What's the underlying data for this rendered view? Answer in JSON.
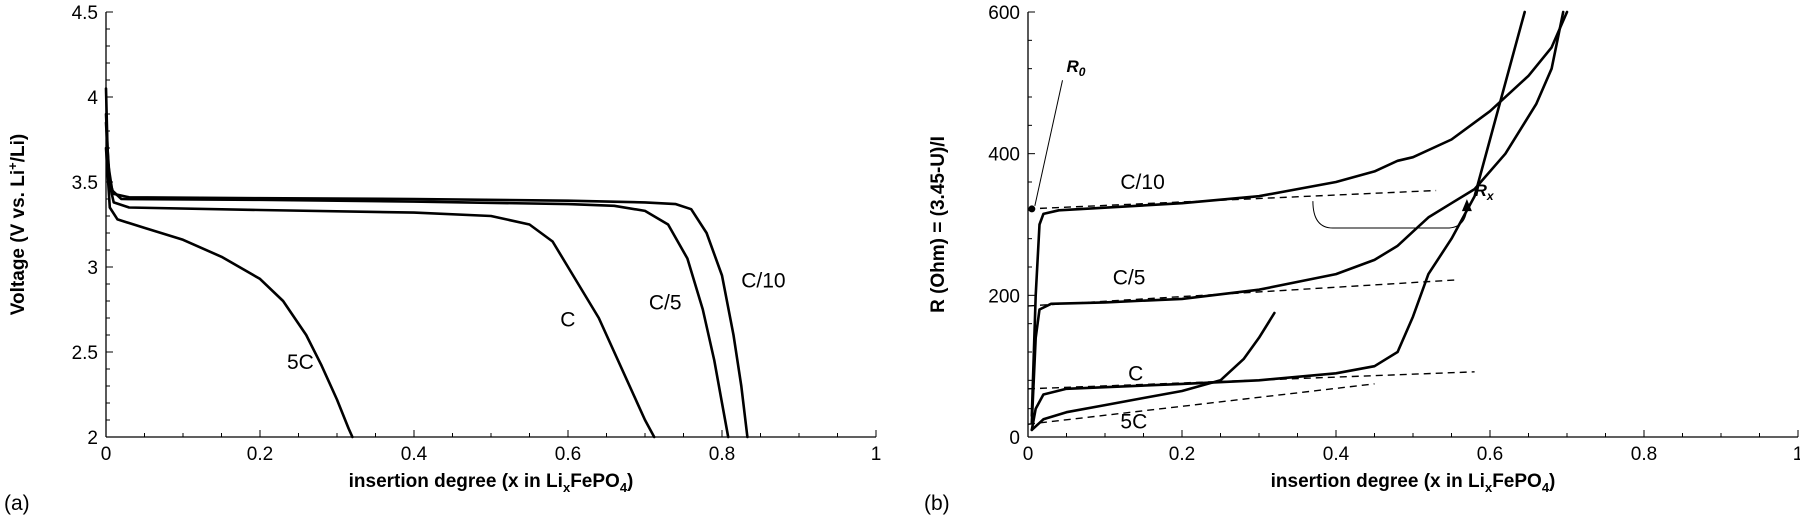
{
  "chart_data": [
    {
      "type": "line",
      "panel_label": "(a)",
      "xlabel": {
        "main": "insertion degree (x in Li",
        "sub": "x",
        "rest": "FePO",
        "sub2": "4",
        "end": ")"
      },
      "ylabel": {
        "main": "Voltage (V vs. Li",
        "sup": "+",
        "end": "/Li)"
      },
      "xlim": [
        0,
        1
      ],
      "ylim": [
        2,
        4.5
      ],
      "x_ticks": [
        0,
        0.2,
        0.4,
        0.6,
        0.8,
        1
      ],
      "x_tick_labels": [
        "0",
        "0.2",
        "0.4",
        "0.6",
        "0.8",
        "1"
      ],
      "y_ticks": [
        2,
        2.5,
        3,
        3.5,
        4,
        4.5
      ],
      "y_tick_labels": [
        "2",
        "2.5",
        "3",
        "3.5",
        "4",
        "4.5"
      ],
      "grid": false,
      "series": [
        {
          "name": "C/10",
          "label_at": [
            0.825,
            2.88
          ],
          "points": [
            [
              0.0,
              4.05
            ],
            [
              0.002,
              3.7
            ],
            [
              0.005,
              3.5
            ],
            [
              0.01,
              3.43
            ],
            [
              0.03,
              3.41
            ],
            [
              0.2,
              3.405
            ],
            [
              0.4,
              3.4
            ],
            [
              0.6,
              3.39
            ],
            [
              0.7,
              3.38
            ],
            [
              0.74,
              3.37
            ],
            [
              0.76,
              3.34
            ],
            [
              0.78,
              3.2
            ],
            [
              0.8,
              2.95
            ],
            [
              0.815,
              2.6
            ],
            [
              0.825,
              2.3
            ],
            [
              0.833,
              2.0
            ]
          ]
        },
        {
          "name": "C/5",
          "label_at": [
            0.705,
            2.75
          ],
          "points": [
            [
              0.0,
              3.9
            ],
            [
              0.003,
              3.6
            ],
            [
              0.008,
              3.45
            ],
            [
              0.02,
              3.4
            ],
            [
              0.2,
              3.395
            ],
            [
              0.4,
              3.385
            ],
            [
              0.6,
              3.37
            ],
            [
              0.66,
              3.36
            ],
            [
              0.7,
              3.33
            ],
            [
              0.73,
              3.25
            ],
            [
              0.755,
              3.05
            ],
            [
              0.775,
              2.75
            ],
            [
              0.79,
              2.45
            ],
            [
              0.8,
              2.2
            ],
            [
              0.808,
              2.0
            ]
          ]
        },
        {
          "name": "C",
          "label_at": [
            0.59,
            2.65
          ],
          "points": [
            [
              0.0,
              3.85
            ],
            [
              0.004,
              3.5
            ],
            [
              0.01,
              3.38
            ],
            [
              0.03,
              3.35
            ],
            [
              0.2,
              3.335
            ],
            [
              0.4,
              3.32
            ],
            [
              0.5,
              3.3
            ],
            [
              0.55,
              3.25
            ],
            [
              0.58,
              3.15
            ],
            [
              0.6,
              3.0
            ],
            [
              0.62,
              2.85
            ],
            [
              0.64,
              2.7
            ],
            [
              0.66,
              2.5
            ],
            [
              0.68,
              2.3
            ],
            [
              0.7,
              2.1
            ],
            [
              0.712,
              2.0
            ]
          ]
        },
        {
          "name": "5C",
          "label_at": [
            0.235,
            2.4
          ],
          "points": [
            [
              0.0,
              3.7
            ],
            [
              0.005,
              3.35
            ],
            [
              0.015,
              3.28
            ],
            [
              0.05,
              3.23
            ],
            [
              0.1,
              3.16
            ],
            [
              0.15,
              3.06
            ],
            [
              0.2,
              2.93
            ],
            [
              0.23,
              2.8
            ],
            [
              0.26,
              2.6
            ],
            [
              0.28,
              2.42
            ],
            [
              0.3,
              2.22
            ],
            [
              0.315,
              2.05
            ],
            [
              0.32,
              2.0
            ]
          ]
        }
      ]
    },
    {
      "type": "line",
      "panel_label": "(b)",
      "xlabel": {
        "main": "insertion degree (x in Li",
        "sub": "x",
        "rest": "FePO",
        "sub2": "4",
        "end": ")"
      },
      "ylabel": {
        "main": "R (Ohm) = (3.45-U)/I"
      },
      "xlim": [
        0,
        1
      ],
      "ylim": [
        0,
        600
      ],
      "x_ticks": [
        0,
        0.2,
        0.4,
        0.6,
        0.8,
        1
      ],
      "x_tick_labels": [
        "0",
        "0.2",
        "0.4",
        "0.6",
        "0.8",
        "1"
      ],
      "y_ticks": [
        0,
        200,
        400,
        600
      ],
      "y_tick_labels": [
        "0",
        "200",
        "400",
        "600"
      ],
      "grid": false,
      "series": [
        {
          "name": "C/10",
          "label_at": [
            0.12,
            350
          ],
          "points": [
            [
              0.005,
              30
            ],
            [
              0.01,
              200
            ],
            [
              0.015,
              300
            ],
            [
              0.02,
              315
            ],
            [
              0.04,
              320
            ],
            [
              0.2,
              330
            ],
            [
              0.3,
              340
            ],
            [
              0.4,
              360
            ],
            [
              0.45,
              375
            ],
            [
              0.48,
              390
            ],
            [
              0.5,
              395
            ],
            [
              0.55,
              420
            ],
            [
              0.6,
              460
            ],
            [
              0.65,
              510
            ],
            [
              0.68,
              550
            ],
            [
              0.7,
              600
            ]
          ]
        },
        {
          "name": "C/5",
          "label_at": [
            0.11,
            215
          ],
          "points": [
            [
              0.005,
              20
            ],
            [
              0.01,
              140
            ],
            [
              0.015,
              180
            ],
            [
              0.03,
              188
            ],
            [
              0.1,
              190
            ],
            [
              0.2,
              195
            ],
            [
              0.3,
              208
            ],
            [
              0.4,
              230
            ],
            [
              0.45,
              250
            ],
            [
              0.48,
              270
            ],
            [
              0.5,
              290
            ],
            [
              0.52,
              310
            ],
            [
              0.55,
              330
            ],
            [
              0.58,
              350
            ],
            [
              0.62,
              400
            ],
            [
              0.66,
              470
            ],
            [
              0.68,
              520
            ],
            [
              0.695,
              600
            ]
          ]
        },
        {
          "name": "C",
          "label_at": [
            0.13,
            80
          ],
          "points": [
            [
              0.005,
              10
            ],
            [
              0.01,
              40
            ],
            [
              0.02,
              60
            ],
            [
              0.05,
              68
            ],
            [
              0.2,
              75
            ],
            [
              0.3,
              80
            ],
            [
              0.4,
              90
            ],
            [
              0.45,
              100
            ],
            [
              0.48,
              120
            ],
            [
              0.5,
              170
            ],
            [
              0.52,
              230
            ],
            [
              0.55,
              280
            ],
            [
              0.58,
              340
            ],
            [
              0.6,
              420
            ],
            [
              0.62,
              500
            ],
            [
              0.64,
              580
            ],
            [
              0.645,
              600
            ]
          ]
        },
        {
          "name": "5C",
          "label_at": [
            0.12,
            12
          ],
          "points": [
            [
              0.005,
              10
            ],
            [
              0.02,
              25
            ],
            [
              0.05,
              35
            ],
            [
              0.1,
              45
            ],
            [
              0.15,
              55
            ],
            [
              0.2,
              65
            ],
            [
              0.25,
              80
            ],
            [
              0.28,
              110
            ],
            [
              0.3,
              140
            ],
            [
              0.32,
              175
            ]
          ]
        }
      ],
      "fit_lines": [
        {
          "series": "C/10",
          "x": [
            0.0,
            0.53
          ],
          "y": [
            322,
            348
          ]
        },
        {
          "series": "C/5",
          "x": [
            0.0,
            0.56
          ],
          "y": [
            185,
            222
          ]
        },
        {
          "series": "C",
          "x": [
            0.0,
            0.58
          ],
          "y": [
            68,
            92
          ]
        },
        {
          "series": "5C",
          "x": [
            0.0,
            0.45
          ],
          "y": [
            18,
            75
          ]
        }
      ],
      "annotations": [
        {
          "text": "R",
          "sub": "0",
          "at": [
            0.05,
            515
          ],
          "target": [
            0.005,
            322
          ]
        },
        {
          "text": "R",
          "sub": "x",
          "at": [
            0.58,
            340
          ]
        }
      ]
    }
  ]
}
